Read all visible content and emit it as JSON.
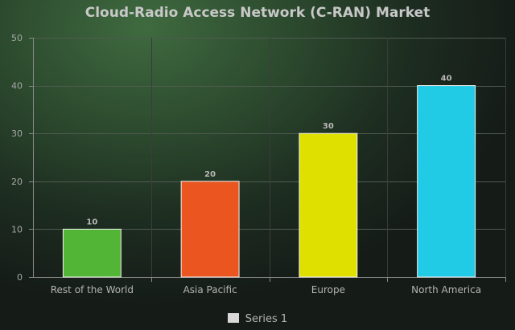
{
  "chart_data": {
    "type": "bar",
    "title": "Cloud-Radio Access Network (C-RAN) Market",
    "xlabel": "",
    "ylabel": "",
    "categories": [
      "Rest of the World",
      "Asia Pacific",
      "Europe",
      "North America"
    ],
    "series": [
      {
        "name": "Series 1",
        "values": [
          10,
          20,
          30,
          40
        ],
        "colors": [
          "#52b535",
          "#ea5520",
          "#dfe000",
          "#22cbe5"
        ]
      }
    ],
    "ylim": [
      0,
      50
    ],
    "yticks": [
      0,
      10,
      20,
      30,
      40,
      50
    ],
    "grid": true,
    "data_labels": true,
    "legend": "bottom"
  }
}
